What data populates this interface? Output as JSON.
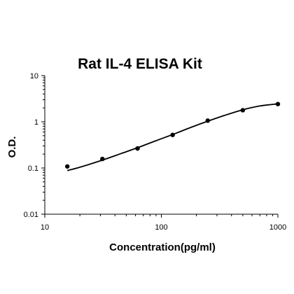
{
  "chart_data": {
    "type": "scatter",
    "title": "Rat IL-4 ELISA Kit",
    "xlabel": "Concentration(pg/ml)",
    "ylabel": "O.D.",
    "x_scale": "log",
    "y_scale": "log",
    "xlim": [
      10,
      1000
    ],
    "ylim": [
      0.01,
      10
    ],
    "x_ticks": [
      "10",
      "100",
      "1000"
    ],
    "y_ticks": [
      "0.01",
      "0.1",
      "1",
      "10"
    ],
    "grid": false,
    "points": [
      {
        "x": 15.6,
        "y": 0.108
      },
      {
        "x": 31.2,
        "y": 0.157
      },
      {
        "x": 62.5,
        "y": 0.265
      },
      {
        "x": 125,
        "y": 0.52
      },
      {
        "x": 250,
        "y": 1.06
      },
      {
        "x": 500,
        "y": 1.78
      },
      {
        "x": 1000,
        "y": 2.42
      }
    ],
    "fit_curve": {
      "x": [
        15.6,
        20,
        31.2,
        45,
        62.5,
        90,
        125,
        180,
        250,
        350,
        500,
        700,
        1000
      ],
      "y": [
        0.088,
        0.104,
        0.148,
        0.205,
        0.275,
        0.39,
        0.53,
        0.76,
        1.03,
        1.38,
        1.82,
        2.2,
        2.45
      ]
    },
    "colors": {
      "marker": "#000000",
      "line": "#000000",
      "axis": "#000000"
    }
  }
}
